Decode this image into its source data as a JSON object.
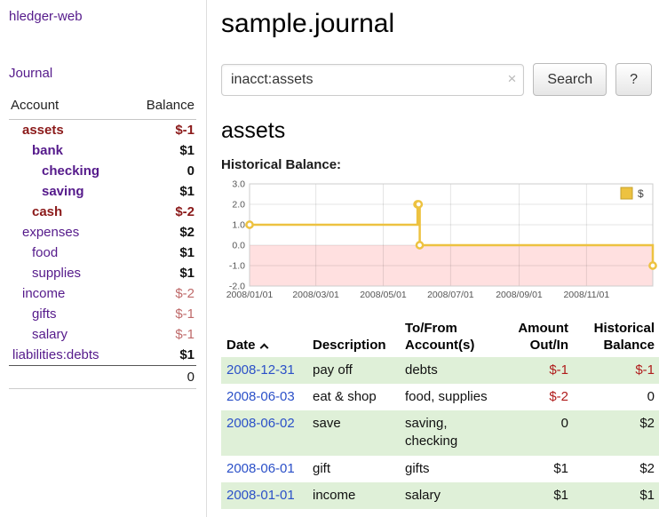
{
  "colors": {
    "purple": "#551a8b",
    "maroon": "#8b1a1a",
    "negSoft": "#bf6a6a",
    "negAmount": "#b01c1c",
    "dateBlue": "#2b50c8",
    "rowGreen": "#dff0d8"
  },
  "sidebar": {
    "brand": "hledger-web",
    "journal_link": "Journal",
    "accounts_header": {
      "account": "Account",
      "balance": "Balance"
    },
    "accounts": [
      {
        "name": "assets",
        "indent": 1,
        "bold": true,
        "maroon": true,
        "balance": "$-1",
        "balance_class": "neg-strong"
      },
      {
        "name": "bank",
        "indent": 2,
        "bold": true,
        "maroon": false,
        "balance": "$1",
        "balance_class": "pos"
      },
      {
        "name": "checking",
        "indent": 3,
        "bold": true,
        "maroon": false,
        "balance": "0",
        "balance_class": "pos"
      },
      {
        "name": "saving",
        "indent": 3,
        "bold": true,
        "maroon": false,
        "balance": "$1",
        "balance_class": "pos"
      },
      {
        "name": "cash",
        "indent": 2,
        "bold": true,
        "maroon": true,
        "balance": "$-2",
        "balance_class": "neg-strong"
      },
      {
        "name": "expenses",
        "indent": 1,
        "bold": false,
        "maroon": false,
        "balance": "$2",
        "balance_class": "pos"
      },
      {
        "name": "food",
        "indent": 2,
        "bold": false,
        "maroon": false,
        "balance": "$1",
        "balance_class": "pos"
      },
      {
        "name": "supplies",
        "indent": 2,
        "bold": false,
        "maroon": false,
        "balance": "$1",
        "balance_class": "pos"
      },
      {
        "name": "income",
        "indent": 1,
        "bold": false,
        "maroon": false,
        "balance": "$-2",
        "balance_class": "neg-soft"
      },
      {
        "name": "gifts",
        "indent": 2,
        "bold": false,
        "maroon": false,
        "balance": "$-1",
        "balance_class": "neg-soft"
      },
      {
        "name": "salary",
        "indent": 2,
        "bold": false,
        "maroon": false,
        "balance": "$-1",
        "balance_class": "neg-soft"
      },
      {
        "name": "liabilities:debts",
        "indent": 0,
        "bold": false,
        "maroon": false,
        "balance": "$1",
        "balance_class": "pos"
      }
    ],
    "total": "0"
  },
  "main": {
    "title": "sample.journal",
    "search": {
      "value": "inacct:assets",
      "clear_icon": "×",
      "button_label": "Search",
      "help_label": "?"
    },
    "account_heading": "assets",
    "chart_label": "Historical Balance:"
  },
  "chart_data": {
    "type": "line",
    "title": "Historical Balance",
    "step": true,
    "xlim": [
      "2008-01-01",
      "2008-12-31"
    ],
    "ylim": [
      -2,
      3
    ],
    "y_ticks": [
      "3.0",
      "2.0",
      "1.0",
      "0.0",
      "-1.0",
      "-2.0"
    ],
    "x_ticks": [
      {
        "label": "2008/01/01",
        "date": "2008-01-01"
      },
      {
        "label": "2008/03/01",
        "date": "2008-03-01"
      },
      {
        "label": "2008/05/01",
        "date": "2008-05-01"
      },
      {
        "label": "2008/07/01",
        "date": "2008-07-01"
      },
      {
        "label": "2008/09/01",
        "date": "2008-09-01"
      },
      {
        "label": "2008/11/01",
        "date": "2008-11-01"
      }
    ],
    "grid": true,
    "negative_region": {
      "from": 0,
      "to": -2,
      "color": "rgba(255,0,0,0.12)"
    },
    "legend": {
      "position": "top-right",
      "label": "$"
    },
    "series": [
      {
        "name": "$",
        "color": "#edc240",
        "points": [
          {
            "x": "2008-01-01",
            "y": 1
          },
          {
            "x": "2008-06-01",
            "y": 2
          },
          {
            "x": "2008-06-02",
            "y": 2
          },
          {
            "x": "2008-06-03",
            "y": 0
          },
          {
            "x": "2008-12-31",
            "y": -1
          }
        ]
      }
    ]
  },
  "register": {
    "headers": [
      "Date",
      "Description",
      "To/From\nAccount(s)",
      "Amount\nOut/In",
      "Historical\nBalance"
    ],
    "rows": [
      {
        "date": "2008-12-31",
        "description": "pay off",
        "accounts": "debts",
        "amount": "$-1",
        "amount_negative": true,
        "balance": "$-1",
        "balance_negative": true,
        "shaded": true
      },
      {
        "date": "2008-06-03",
        "description": "eat & shop",
        "accounts": "food, supplies",
        "amount": "$-2",
        "amount_negative": true,
        "balance": "0",
        "balance_negative": false,
        "shaded": false
      },
      {
        "date": "2008-06-02",
        "description": "save",
        "accounts": "saving, checking",
        "amount": "0",
        "amount_negative": false,
        "balance": "$2",
        "balance_negative": false,
        "shaded": true
      },
      {
        "date": "2008-06-01",
        "description": "gift",
        "accounts": "gifts",
        "amount": "$1",
        "amount_negative": false,
        "balance": "$2",
        "balance_negative": false,
        "shaded": false
      },
      {
        "date": "2008-01-01",
        "description": "income",
        "accounts": "salary",
        "amount": "$1",
        "amount_negative": false,
        "balance": "$1",
        "balance_negative": false,
        "shaded": true
      }
    ]
  }
}
